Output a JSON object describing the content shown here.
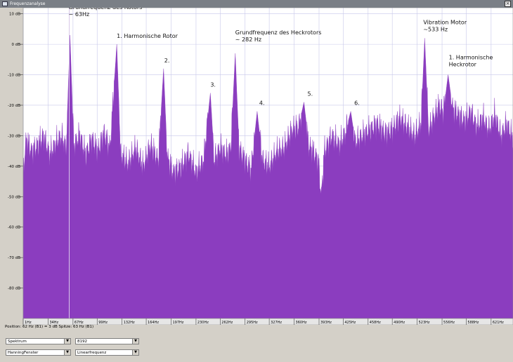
{
  "window": {
    "title": "Frequenzanalyse"
  },
  "chart_data": {
    "type": "area",
    "x_scale": "linear",
    "xlim": [
      1,
      650
    ],
    "ylim": [
      -90,
      12
    ],
    "y_ticks": [
      {
        "value": 10,
        "label": "10 dB"
      },
      {
        "value": 0,
        "label": "0 dB"
      },
      {
        "value": -10,
        "label": "-10 dB"
      },
      {
        "value": -20,
        "label": "-20 dB"
      },
      {
        "value": -30,
        "label": "-30 dB"
      },
      {
        "value": -40,
        "label": "-40 dB"
      },
      {
        "value": -50,
        "label": "-50 dB"
      },
      {
        "value": -60,
        "label": "-60 dB"
      },
      {
        "value": -70,
        "label": "-70 dB"
      },
      {
        "value": -80,
        "label": "-80 dB"
      }
    ],
    "x_ticks": [
      {
        "value": 1,
        "label": "1Hz"
      },
      {
        "value": 34,
        "label": "34Hz"
      },
      {
        "value": 67,
        "label": "67Hz"
      },
      {
        "value": 99,
        "label": "99Hz"
      },
      {
        "value": 132,
        "label": "132Hz"
      },
      {
        "value": 164,
        "label": "164Hz"
      },
      {
        "value": 197,
        "label": "197Hz"
      },
      {
        "value": 230,
        "label": "230Hz"
      },
      {
        "value": 262,
        "label": "262Hz"
      },
      {
        "value": 295,
        "label": "295Hz"
      },
      {
        "value": 327,
        "label": "327Hz"
      },
      {
        "value": 360,
        "label": "360Hz"
      },
      {
        "value": 393,
        "label": "393Hz"
      },
      {
        "value": 425,
        "label": "425Hz"
      },
      {
        "value": 458,
        "label": "458Hz"
      },
      {
        "value": 490,
        "label": "490Hz"
      },
      {
        "value": 523,
        "label": "523Hz"
      },
      {
        "value": 556,
        "label": "556Hz"
      },
      {
        "value": 588,
        "label": "588Hz"
      },
      {
        "value": 621,
        "label": "621Hz"
      }
    ],
    "cursor_x": 62,
    "peaks": [
      {
        "x": 63,
        "y": 3
      },
      {
        "x": 125,
        "y": 0
      },
      {
        "x": 187,
        "y": -8
      },
      {
        "x": 249,
        "y": -16
      },
      {
        "x": 282,
        "y": -3
      },
      {
        "x": 311,
        "y": -22
      },
      {
        "x": 373,
        "y": -19
      },
      {
        "x": 435,
        "y": -22
      },
      {
        "x": 533,
        "y": 2
      },
      {
        "x": 564,
        "y": -10
      }
    ],
    "spectrum": [
      {
        "x": 1,
        "y": -42
      },
      {
        "x": 5,
        "y": -31
      },
      {
        "x": 12,
        "y": -35
      },
      {
        "x": 20,
        "y": -33
      },
      {
        "x": 28,
        "y": -30
      },
      {
        "x": 36,
        "y": -36
      },
      {
        "x": 45,
        "y": -32
      },
      {
        "x": 52,
        "y": -30
      },
      {
        "x": 58,
        "y": -34
      },
      {
        "x": 63,
        "y": 3
      },
      {
        "x": 68,
        "y": -33
      },
      {
        "x": 76,
        "y": -30
      },
      {
        "x": 84,
        "y": -36
      },
      {
        "x": 92,
        "y": -31
      },
      {
        "x": 100,
        "y": -35
      },
      {
        "x": 108,
        "y": -29
      },
      {
        "x": 116,
        "y": -34
      },
      {
        "x": 125,
        "y": 0
      },
      {
        "x": 130,
        "y": -36
      },
      {
        "x": 140,
        "y": -39
      },
      {
        "x": 150,
        "y": -34
      },
      {
        "x": 160,
        "y": -40
      },
      {
        "x": 170,
        "y": -33
      },
      {
        "x": 180,
        "y": -38
      },
      {
        "x": 187,
        "y": -8
      },
      {
        "x": 192,
        "y": -37
      },
      {
        "x": 200,
        "y": -42
      },
      {
        "x": 210,
        "y": -40
      },
      {
        "x": 220,
        "y": -36
      },
      {
        "x": 230,
        "y": -42
      },
      {
        "x": 240,
        "y": -38
      },
      {
        "x": 249,
        "y": -16
      },
      {
        "x": 254,
        "y": -38
      },
      {
        "x": 262,
        "y": -34
      },
      {
        "x": 270,
        "y": -36
      },
      {
        "x": 276,
        "y": -34
      },
      {
        "x": 282,
        "y": -3
      },
      {
        "x": 287,
        "y": -34
      },
      {
        "x": 295,
        "y": -38
      },
      {
        "x": 303,
        "y": -41
      },
      {
        "x": 311,
        "y": -22
      },
      {
        "x": 318,
        "y": -38
      },
      {
        "x": 327,
        "y": -40
      },
      {
        "x": 337,
        "y": -35
      },
      {
        "x": 347,
        "y": -34
      },
      {
        "x": 357,
        "y": -28
      },
      {
        "x": 366,
        "y": -27
      },
      {
        "x": 373,
        "y": -19
      },
      {
        "x": 379,
        "y": -33
      },
      {
        "x": 385,
        "y": -35
      },
      {
        "x": 392,
        "y": -38
      },
      {
        "x": 396,
        "y": -50
      },
      {
        "x": 400,
        "y": -35
      },
      {
        "x": 410,
        "y": -30
      },
      {
        "x": 420,
        "y": -33
      },
      {
        "x": 428,
        "y": -29
      },
      {
        "x": 435,
        "y": -22
      },
      {
        "x": 441,
        "y": -32
      },
      {
        "x": 450,
        "y": -30
      },
      {
        "x": 460,
        "y": -28
      },
      {
        "x": 470,
        "y": -26
      },
      {
        "x": 480,
        "y": -29
      },
      {
        "x": 490,
        "y": -28
      },
      {
        "x": 500,
        "y": -24
      },
      {
        "x": 510,
        "y": -27
      },
      {
        "x": 520,
        "y": -30
      },
      {
        "x": 528,
        "y": -26
      },
      {
        "x": 533,
        "y": 2
      },
      {
        "x": 538,
        "y": -28
      },
      {
        "x": 545,
        "y": -24
      },
      {
        "x": 552,
        "y": -20
      },
      {
        "x": 558,
        "y": -22
      },
      {
        "x": 564,
        "y": -10
      },
      {
        "x": 570,
        "y": -21
      },
      {
        "x": 578,
        "y": -23
      },
      {
        "x": 586,
        "y": -25
      },
      {
        "x": 594,
        "y": -22
      },
      {
        "x": 602,
        "y": -27
      },
      {
        "x": 610,
        "y": -24
      },
      {
        "x": 618,
        "y": -28
      },
      {
        "x": 626,
        "y": -23
      },
      {
        "x": 634,
        "y": -30
      },
      {
        "x": 642,
        "y": -26
      },
      {
        "x": 650,
        "y": -31
      }
    ],
    "annotations": [
      {
        "x": 63,
        "y": 3,
        "text": "Grundfrequenz des Rotors",
        "text2": "~ 63Hz"
      },
      {
        "x": 125,
        "y": 0,
        "text": "1. Harmonische Rotor"
      },
      {
        "x": 187,
        "y": -8,
        "text": "2."
      },
      {
        "x": 249,
        "y": -16,
        "text": "3."
      },
      {
        "x": 282,
        "y": -3,
        "text": "Grundfrequenz des Heckrotors",
        "text2": "~ 282 Hz"
      },
      {
        "x": 311,
        "y": -22,
        "text": "4."
      },
      {
        "x": 373,
        "y": -19,
        "text": "5."
      },
      {
        "x": 435,
        "y": -22,
        "text": "6."
      },
      {
        "x": 533,
        "y": 2,
        "text": "Vibration Motor",
        "text2": "~533 Hz"
      },
      {
        "x": 564,
        "y": -10,
        "text": "1. Harmonische",
        "text2": "Heckrotor"
      }
    ],
    "colors": {
      "fill": "#8b3dbf",
      "background": "#ffffff",
      "grid": "#c8c8ea",
      "cursor": "#d8c8e8"
    }
  },
  "status": {
    "text": "Position: 62 Hz (B1) = 3 dB   Spitze: 63 Hz (B1)"
  },
  "controls": {
    "algorithm": "Spektrum",
    "size": "8192",
    "window": "HanningFenster",
    "axis": "Linearfrequenz"
  }
}
